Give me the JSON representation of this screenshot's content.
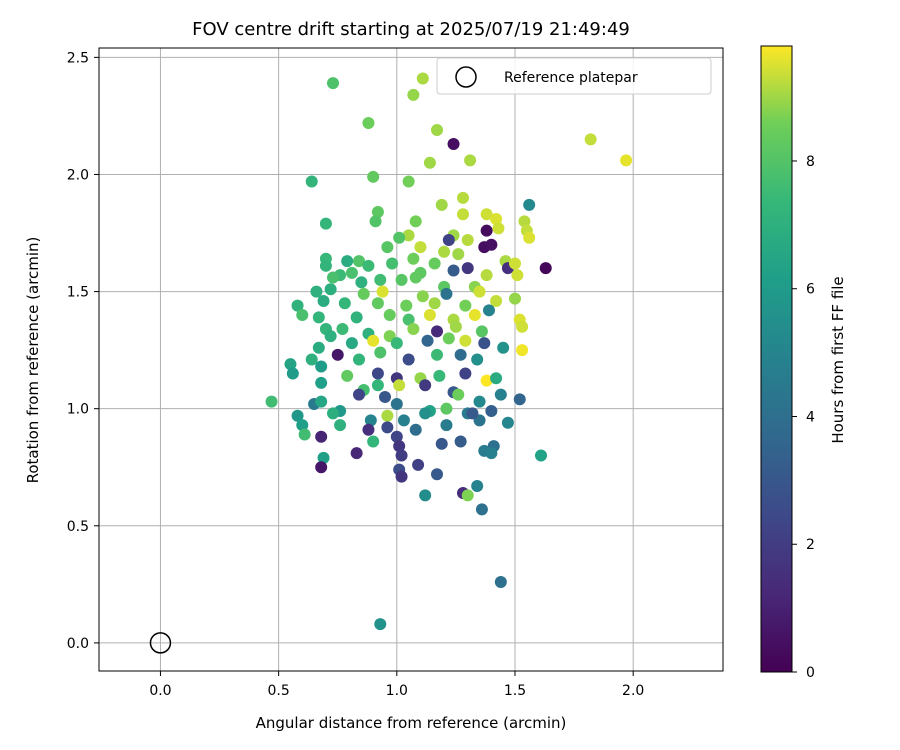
{
  "chart_data": {
    "type": "scatter",
    "title": "FOV centre drift starting at 2025/07/19 21:49:49",
    "xlabel": "Angular distance from reference (arcmin)",
    "ylabel": "Rotation from reference (arcmin)",
    "xlim": [
      -0.26,
      2.38
    ],
    "ylim": [
      -0.12,
      2.54
    ],
    "xticks": [
      0.0,
      0.5,
      1.0,
      1.5,
      2.0
    ],
    "xtick_labels": [
      "0.0",
      "0.5",
      "1.0",
      "1.5",
      "2.0"
    ],
    "yticks": [
      0.0,
      0.5,
      1.0,
      1.5,
      2.0,
      2.5
    ],
    "ytick_labels": [
      "0.0",
      "0.5",
      "1.0",
      "1.5",
      "2.0",
      "2.5"
    ],
    "grid": true,
    "legend": {
      "position": "top-right",
      "entries": [
        "Reference platepar"
      ]
    },
    "reference_point": {
      "x": 0.0,
      "y": 0.0,
      "label": "Reference platepar"
    },
    "colorbar": {
      "label": "Hours from first FF file",
      "colormap": "viridis",
      "range": [
        0,
        9.8
      ],
      "ticks": [
        0,
        2,
        4,
        6,
        8
      ],
      "tick_labels": [
        "0",
        "2",
        "4",
        "6",
        "8"
      ]
    },
    "points": [
      [
        0.73,
        2.39,
        7.9
      ],
      [
        1.11,
        2.41,
        9.1
      ],
      [
        1.07,
        2.34,
        8.9
      ],
      [
        0.88,
        2.22,
        8.5
      ],
      [
        1.17,
        2.19,
        9.0
      ],
      [
        1.24,
        2.13,
        0.4
      ],
      [
        1.82,
        2.15,
        9.3
      ],
      [
        1.97,
        2.06,
        9.6
      ],
      [
        1.14,
        2.05,
        9.0
      ],
      [
        1.31,
        2.06,
        9.1
      ],
      [
        0.64,
        1.97,
        7.2
      ],
      [
        0.9,
        1.99,
        8.3
      ],
      [
        1.05,
        1.97,
        8.6
      ],
      [
        1.28,
        1.9,
        9.2
      ],
      [
        1.19,
        1.87,
        9.0
      ],
      [
        1.56,
        1.87,
        5.2
      ],
      [
        0.92,
        1.84,
        8.2
      ],
      [
        1.28,
        1.83,
        9.3
      ],
      [
        1.38,
        1.83,
        9.4
      ],
      [
        1.42,
        1.81,
        9.5
      ],
      [
        1.08,
        1.8,
        8.6
      ],
      [
        0.91,
        1.8,
        8.0
      ],
      [
        0.7,
        1.79,
        7.3
      ],
      [
        1.54,
        1.8,
        9.2
      ],
      [
        1.43,
        1.77,
        9.4
      ],
      [
        1.38,
        1.76,
        0.3
      ],
      [
        1.55,
        1.76,
        9.3
      ],
      [
        1.56,
        1.73,
        9.5
      ],
      [
        1.24,
        1.74,
        9.0
      ],
      [
        1.22,
        1.72,
        2.2
      ],
      [
        1.05,
        1.74,
        9.1
      ],
      [
        1.3,
        1.72,
        9.2
      ],
      [
        1.37,
        1.69,
        0.4
      ],
      [
        1.4,
        1.7,
        0.5
      ],
      [
        0.96,
        1.69,
        8.1
      ],
      [
        1.01,
        1.73,
        8.0
      ],
      [
        1.1,
        1.69,
        9.3
      ],
      [
        1.26,
        1.66,
        9.0
      ],
      [
        1.2,
        1.67,
        9.1
      ],
      [
        1.07,
        1.64,
        8.5
      ],
      [
        0.7,
        1.64,
        7.4
      ],
      [
        0.84,
        1.63,
        8.0
      ],
      [
        0.88,
        1.61,
        7.5
      ],
      [
        0.98,
        1.62,
        7.7
      ],
      [
        1.16,
        1.62,
        8.4
      ],
      [
        1.3,
        1.6,
        1.8
      ],
      [
        1.46,
        1.63,
        9.1
      ],
      [
        1.47,
        1.6,
        1.5
      ],
      [
        1.5,
        1.62,
        9.4
      ],
      [
        1.63,
        1.6,
        0.2
      ],
      [
        0.7,
        1.61,
        7.2
      ],
      [
        0.79,
        1.63,
        6.8
      ],
      [
        0.76,
        1.57,
        7.5
      ],
      [
        0.81,
        1.58,
        7.8
      ],
      [
        0.93,
        1.55,
        7.6
      ],
      [
        1.02,
        1.55,
        8.1
      ],
      [
        1.1,
        1.58,
        8.2
      ],
      [
        1.24,
        1.59,
        3.2
      ],
      [
        1.38,
        1.57,
        9.2
      ],
      [
        1.51,
        1.57,
        9.4
      ],
      [
        0.73,
        1.56,
        7.8
      ],
      [
        0.85,
        1.54,
        7.0
      ],
      [
        1.08,
        1.56,
        8.3
      ],
      [
        1.2,
        1.52,
        8.2
      ],
      [
        1.33,
        1.52,
        8.8
      ],
      [
        0.66,
        1.5,
        7.0
      ],
      [
        0.72,
        1.51,
        6.9
      ],
      [
        0.86,
        1.49,
        8.4
      ],
      [
        0.94,
        1.5,
        9.5
      ],
      [
        1.11,
        1.48,
        8.8
      ],
      [
        1.21,
        1.49,
        4.2
      ],
      [
        1.35,
        1.5,
        9.4
      ],
      [
        1.42,
        1.46,
        9.3
      ],
      [
        1.5,
        1.47,
        8.9
      ],
      [
        0.58,
        1.44,
        7.1
      ],
      [
        0.69,
        1.46,
        6.8
      ],
      [
        0.78,
        1.45,
        7.3
      ],
      [
        0.92,
        1.45,
        8.3
      ],
      [
        1.04,
        1.44,
        8.5
      ],
      [
        1.16,
        1.45,
        9.0
      ],
      [
        1.29,
        1.44,
        8.6
      ],
      [
        1.39,
        1.42,
        4.9
      ],
      [
        0.6,
        1.4,
        7.8
      ],
      [
        0.67,
        1.39,
        7.2
      ],
      [
        0.83,
        1.39,
        7.1
      ],
      [
        0.97,
        1.4,
        8.4
      ],
      [
        1.05,
        1.38,
        7.8
      ],
      [
        1.14,
        1.4,
        9.5
      ],
      [
        1.24,
        1.38,
        9.1
      ],
      [
        1.33,
        1.4,
        9.6
      ],
      [
        1.52,
        1.38,
        9.5
      ],
      [
        1.53,
        1.35,
        9.4
      ],
      [
        0.7,
        1.34,
        7.2
      ],
      [
        0.77,
        1.34,
        7.5
      ],
      [
        0.88,
        1.32,
        7.0
      ],
      [
        0.97,
        1.31,
        8.7
      ],
      [
        1.07,
        1.34,
        8.8
      ],
      [
        1.17,
        1.33,
        1.3
      ],
      [
        1.25,
        1.35,
        9.0
      ],
      [
        1.36,
        1.33,
        8.1
      ],
      [
        0.72,
        1.31,
        7.0
      ],
      [
        0.81,
        1.28,
        6.6
      ],
      [
        0.9,
        1.29,
        9.6
      ],
      [
        1.0,
        1.28,
        7.4
      ],
      [
        1.13,
        1.29,
        3.6
      ],
      [
        1.22,
        1.3,
        8.5
      ],
      [
        1.29,
        1.29,
        9.4
      ],
      [
        1.37,
        1.28,
        2.8
      ],
      [
        1.45,
        1.26,
        5.6
      ],
      [
        1.53,
        1.25,
        9.7
      ],
      [
        0.64,
        1.21,
        7.0
      ],
      [
        0.67,
        1.26,
        6.8
      ],
      [
        0.75,
        1.23,
        0.7
      ],
      [
        0.84,
        1.21,
        7.2
      ],
      [
        0.93,
        1.24,
        7.9
      ],
      [
        1.05,
        1.21,
        2.6
      ],
      [
        1.17,
        1.23,
        7.5
      ],
      [
        1.27,
        1.23,
        3.9
      ],
      [
        1.34,
        1.21,
        5.5
      ],
      [
        0.55,
        1.19,
        6.4
      ],
      [
        0.68,
        1.18,
        6.1
      ],
      [
        0.79,
        1.14,
        8.3
      ],
      [
        0.92,
        1.15,
        2.4
      ],
      [
        1.0,
        1.13,
        1.7
      ],
      [
        1.1,
        1.13,
        8.9
      ],
      [
        1.18,
        1.14,
        7.4
      ],
      [
        1.29,
        1.15,
        2.2
      ],
      [
        1.38,
        1.12,
        9.8
      ],
      [
        1.42,
        1.13,
        6.7
      ],
      [
        0.56,
        1.15,
        6.0
      ],
      [
        0.68,
        1.11,
        6.2
      ],
      [
        0.86,
        1.08,
        7.7
      ],
      [
        0.92,
        1.1,
        7.3
      ],
      [
        1.01,
        1.1,
        9.3
      ],
      [
        1.12,
        1.1,
        1.9
      ],
      [
        1.24,
        1.07,
        3.0
      ],
      [
        1.26,
        1.06,
        8.5
      ],
      [
        1.35,
        1.03,
        5.2
      ],
      [
        1.44,
        1.06,
        4.8
      ],
      [
        0.47,
        1.03,
        7.6
      ],
      [
        0.65,
        1.02,
        4.5
      ],
      [
        0.68,
        1.03,
        6.5
      ],
      [
        0.76,
        0.99,
        5.9
      ],
      [
        0.84,
        1.06,
        2.3
      ],
      [
        0.95,
        1.05,
        3.0
      ],
      [
        1.0,
        1.02,
        4.2
      ],
      [
        1.14,
        0.99,
        6.3
      ],
      [
        1.21,
        1.0,
        8.2
      ],
      [
        1.3,
        0.98,
        4.6
      ],
      [
        1.35,
        0.95,
        4.2
      ],
      [
        1.47,
        0.94,
        5.1
      ],
      [
        1.52,
        1.04,
        3.6
      ],
      [
        0.58,
        0.97,
        5.8
      ],
      [
        0.6,
        0.93,
        6.2
      ],
      [
        0.73,
        0.98,
        6.9
      ],
      [
        0.89,
        0.95,
        5.0
      ],
      [
        0.96,
        0.97,
        9.1
      ],
      [
        1.03,
        0.95,
        4.8
      ],
      [
        1.12,
        0.98,
        5.5
      ],
      [
        1.21,
        0.93,
        4.6
      ],
      [
        1.32,
        0.98,
        3.1
      ],
      [
        1.4,
        0.99,
        3.3
      ],
      [
        0.61,
        0.89,
        7.6
      ],
      [
        0.68,
        0.88,
        1.1
      ],
      [
        0.76,
        0.93,
        7.0
      ],
      [
        0.88,
        0.91,
        1.5
      ],
      [
        0.96,
        0.92,
        2.5
      ],
      [
        1.0,
        0.88,
        2.3
      ],
      [
        1.08,
        0.91,
        3.9
      ],
      [
        1.19,
        0.85,
        3.0
      ],
      [
        1.27,
        0.86,
        3.2
      ],
      [
        1.37,
        0.82,
        4.6
      ],
      [
        1.41,
        0.84,
        4.1
      ],
      [
        1.61,
        0.8,
        6.3
      ],
      [
        0.69,
        0.79,
        6.2
      ],
      [
        0.68,
        0.75,
        0.7
      ],
      [
        0.83,
        0.81,
        1.2
      ],
      [
        0.9,
        0.86,
        7.3
      ],
      [
        1.01,
        0.84,
        1.8
      ],
      [
        1.02,
        0.8,
        2.0
      ],
      [
        1.09,
        0.76,
        2.1
      ],
      [
        1.4,
        0.81,
        4.8
      ],
      [
        1.01,
        0.74,
        2.6
      ],
      [
        1.02,
        0.71,
        1.7
      ],
      [
        1.17,
        0.72,
        3.1
      ],
      [
        1.34,
        0.67,
        4.9
      ],
      [
        1.28,
        0.64,
        1.4
      ],
      [
        1.3,
        0.63,
        8.7
      ],
      [
        1.12,
        0.63,
        5.4
      ],
      [
        1.36,
        0.57,
        4.1
      ],
      [
        1.44,
        0.26,
        4.1
      ],
      [
        0.93,
        0.08,
        5.6
      ]
    ]
  }
}
